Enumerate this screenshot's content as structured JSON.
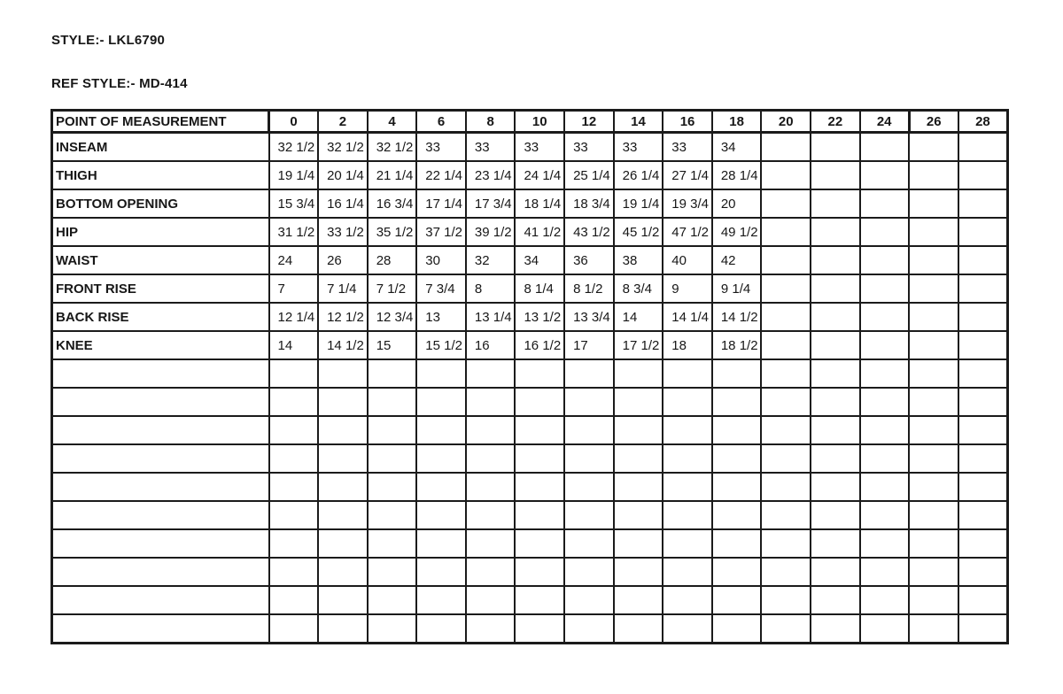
{
  "header": {
    "style": "STYLE:- LKL6790",
    "ref_style": "REF STYLE:- MD-414"
  },
  "table": {
    "corner_header": "POINT OF MEASUREMENT",
    "size_headers": [
      "0",
      "2",
      "4",
      "6",
      "8",
      "10",
      "12",
      "14",
      "16",
      "18",
      "20",
      "22",
      "24",
      "26",
      "28"
    ],
    "thick_box_sizes": [
      "26",
      "28"
    ],
    "rows": [
      {
        "label": "INSEAM",
        "values": [
          "32 1/2",
          "32 1/2",
          "32 1/2",
          "33",
          "33",
          "33",
          "33",
          "33",
          "33",
          "34",
          "",
          "",
          "",
          "",
          ""
        ]
      },
      {
        "label": "THIGH",
        "values": [
          "19 1/4",
          "20 1/4",
          "21 1/4",
          "22 1/4",
          "23 1/4",
          "24 1/4",
          "25 1/4",
          "26 1/4",
          "27 1/4",
          "28 1/4",
          "",
          "",
          "",
          "",
          ""
        ]
      },
      {
        "label": "BOTTOM OPENING",
        "values": [
          "15 3/4",
          "16 1/4",
          "16 3/4",
          "17 1/4",
          "17 3/4",
          "18 1/4",
          "18 3/4",
          "19 1/4",
          "19 3/4",
          "20",
          "",
          "",
          "",
          "",
          ""
        ]
      },
      {
        "label": "HIP",
        "values": [
          "31 1/2",
          "33 1/2",
          "35 1/2",
          "37 1/2",
          "39 1/2",
          "41 1/2",
          "43 1/2",
          "45 1/2",
          "47 1/2",
          "49 1/2",
          "",
          "",
          "",
          "",
          ""
        ]
      },
      {
        "label": "WAIST",
        "values": [
          "24",
          "26",
          "28",
          "30",
          "32",
          "34",
          "36",
          "38",
          "40",
          "42",
          "",
          "",
          "",
          "",
          ""
        ]
      },
      {
        "label": "FRONT RISE",
        "values": [
          "7",
          "7 1/4",
          "7 1/2",
          "7 3/4",
          "8",
          "8 1/4",
          "8 1/2",
          "8 3/4",
          "9",
          "9 1/4",
          "",
          "",
          "",
          "",
          ""
        ]
      },
      {
        "label": "BACK RISE",
        "values": [
          "12 1/4",
          "12 1/2",
          "12 3/4",
          "13",
          "13 1/4",
          "13 1/2",
          "13 3/4",
          "14",
          "14 1/4",
          "14 1/2",
          "",
          "",
          "",
          "",
          ""
        ]
      },
      {
        "label": "KNEE",
        "values": [
          "14",
          "14 1/2",
          "15",
          "15 1/2",
          "16",
          "16 1/2",
          "17",
          "17 1/2",
          "18",
          "18 1/2",
          "",
          "",
          "",
          "",
          ""
        ]
      }
    ],
    "empty_row_count": 10
  }
}
